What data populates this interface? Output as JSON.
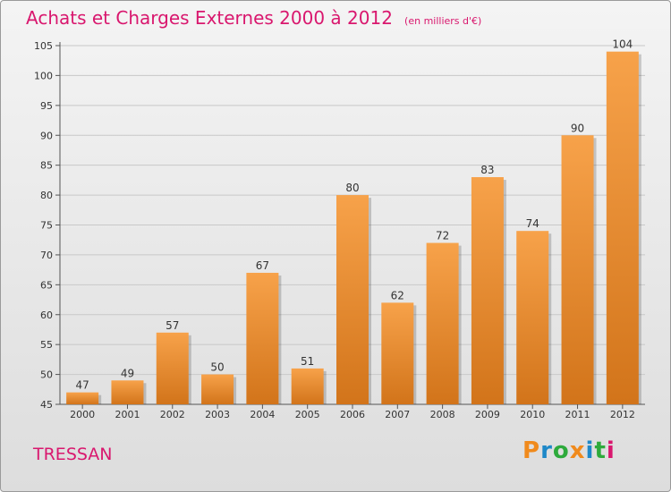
{
  "header": {
    "title": "Achats et Charges Externes 2000 à 2012",
    "subtitle": "(en milliers d'€)"
  },
  "footer": {
    "commune": "TRESSAN",
    "brand": "Proxiti",
    "brand_colors": [
      "#f08a1c",
      "#1e88c8",
      "#2eaa3c",
      "#f08a1c",
      "#1e88c8",
      "#2eaa3c",
      "#d9176e"
    ]
  },
  "colors": {
    "accent": "#d9176e",
    "bar_top": "#f7a24a",
    "bar_bottom": "#d2741a",
    "grid": "#c8c8c8"
  },
  "chart_data": {
    "type": "bar",
    "title": "Achats et Charges Externes 2000 à 2012",
    "subtitle": "(en milliers d'€)",
    "categories": [
      "2000",
      "2001",
      "2002",
      "2003",
      "2004",
      "2005",
      "2006",
      "2007",
      "2008",
      "2009",
      "2010",
      "2011",
      "2012"
    ],
    "values": [
      47,
      49,
      57,
      50,
      67,
      51,
      80,
      62,
      72,
      83,
      74,
      90,
      104
    ],
    "ylim": [
      45,
      105
    ],
    "yticks": [
      45,
      50,
      55,
      60,
      65,
      70,
      75,
      80,
      85,
      90,
      95,
      100,
      105
    ],
    "grid": true,
    "data_labels": true
  }
}
